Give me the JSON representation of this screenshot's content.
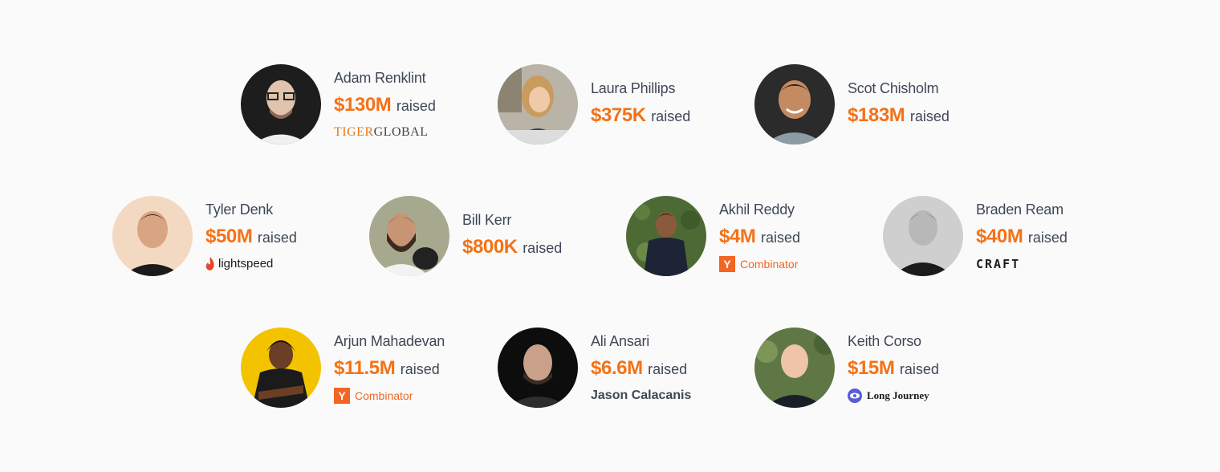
{
  "raised_suffix": "raised",
  "colors": {
    "accent": "#f47216",
    "text": "#3f4756",
    "background": "#fafafa"
  },
  "founders": [
    {
      "name": "Adam Renklint",
      "amount": "$130M",
      "investor": {
        "type": "tiger",
        "part1": "TIGER",
        "part2": "GLOBAL"
      }
    },
    {
      "name": "Laura Phillips",
      "amount": "$375K",
      "investor": null
    },
    {
      "name": "Scot Chisholm",
      "amount": "$183M",
      "investor": null
    },
    {
      "name": "Tyler Denk",
      "amount": "$50M",
      "investor": {
        "type": "lightspeed",
        "label": "lightspeed"
      }
    },
    {
      "name": "Bill Kerr",
      "amount": "$800K",
      "investor": null
    },
    {
      "name": "Akhil Reddy",
      "amount": "$4M",
      "investor": {
        "type": "yc",
        "mark": "Y",
        "label": "Combinator"
      }
    },
    {
      "name": "Braden Ream",
      "amount": "$40M",
      "investor": {
        "type": "craft",
        "label": "CRAFT"
      }
    },
    {
      "name": "Arjun Mahadevan",
      "amount": "$11.5M",
      "investor": {
        "type": "yc",
        "mark": "Y",
        "label": "Combinator"
      }
    },
    {
      "name": "Ali Ansari",
      "amount": "$6.6M",
      "investor": {
        "type": "text",
        "label": "Jason Calacanis"
      }
    },
    {
      "name": "Keith Corso",
      "amount": "$15M",
      "investor": {
        "type": "longjourney",
        "label": "Long Journey"
      }
    }
  ]
}
